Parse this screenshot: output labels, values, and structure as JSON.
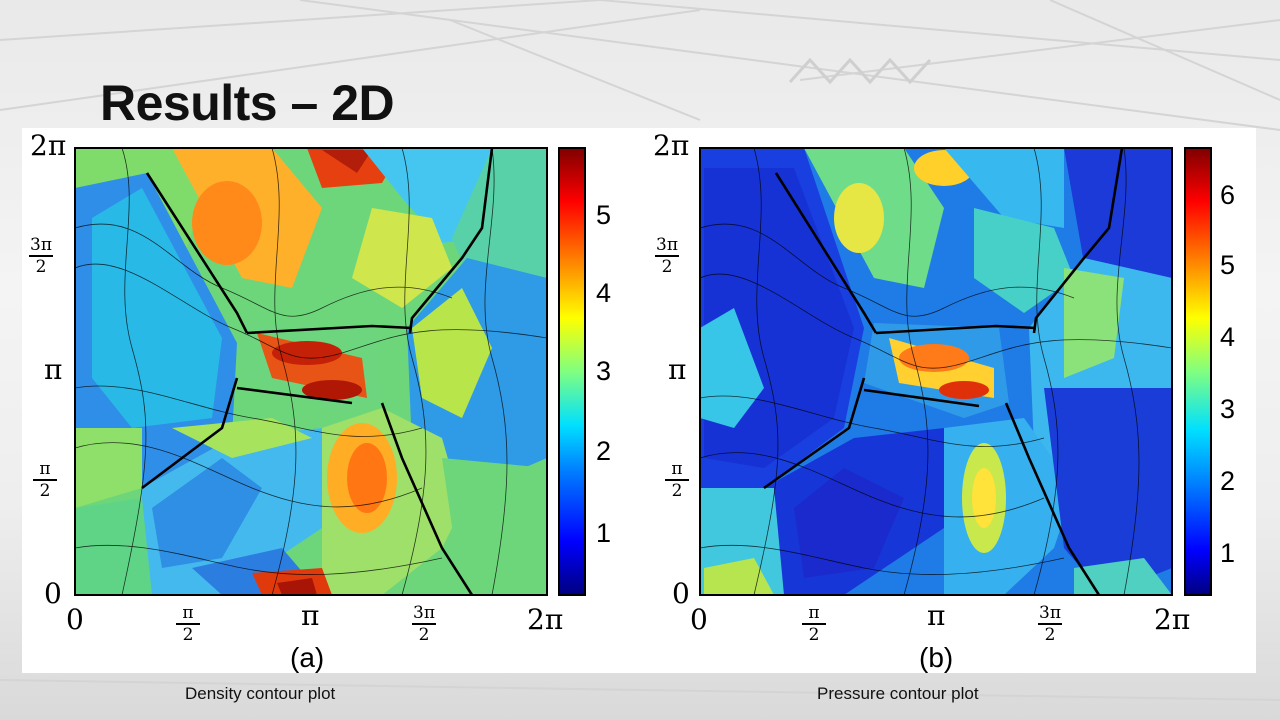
{
  "slide": {
    "title": "Results – 2D"
  },
  "plots": [
    {
      "panel_label": "(a)",
      "caption": "Density contour plot",
      "x_ticks": {
        "zero": "0",
        "half_pi_num": "π",
        "half_pi_den": "2",
        "pi": "π",
        "three_half_num": "3π",
        "three_half_den": "2",
        "two_pi": "2π"
      },
      "y_ticks": {
        "zero": "0",
        "half_pi_num": "π",
        "half_pi_den": "2",
        "pi": "π",
        "three_half_num": "3π",
        "three_half_den": "2",
        "two_pi": "2π"
      },
      "colorbar_labels": [
        "1",
        "2",
        "3",
        "4",
        "5"
      ]
    },
    {
      "panel_label": "(b)",
      "caption": "Pressure contour plot",
      "x_ticks": {
        "zero": "0",
        "half_pi_num": "π",
        "half_pi_den": "2",
        "pi": "π",
        "three_half_num": "3π",
        "three_half_den": "2",
        "two_pi": "2π"
      },
      "y_ticks": {
        "zero": "0",
        "half_pi_num": "π",
        "half_pi_den": "2",
        "pi": "π",
        "three_half_num": "3π",
        "three_half_den": "2",
        "two_pi": "2π"
      },
      "colorbar_labels": [
        "1",
        "2",
        "3",
        "4",
        "5",
        "6"
      ]
    }
  ],
  "colors": {
    "jet": [
      "#00007f",
      "#0000ff",
      "#0080ff",
      "#00ffff",
      "#80ff80",
      "#ffff00",
      "#ff8000",
      "#ff0000",
      "#7f0000"
    ]
  }
}
